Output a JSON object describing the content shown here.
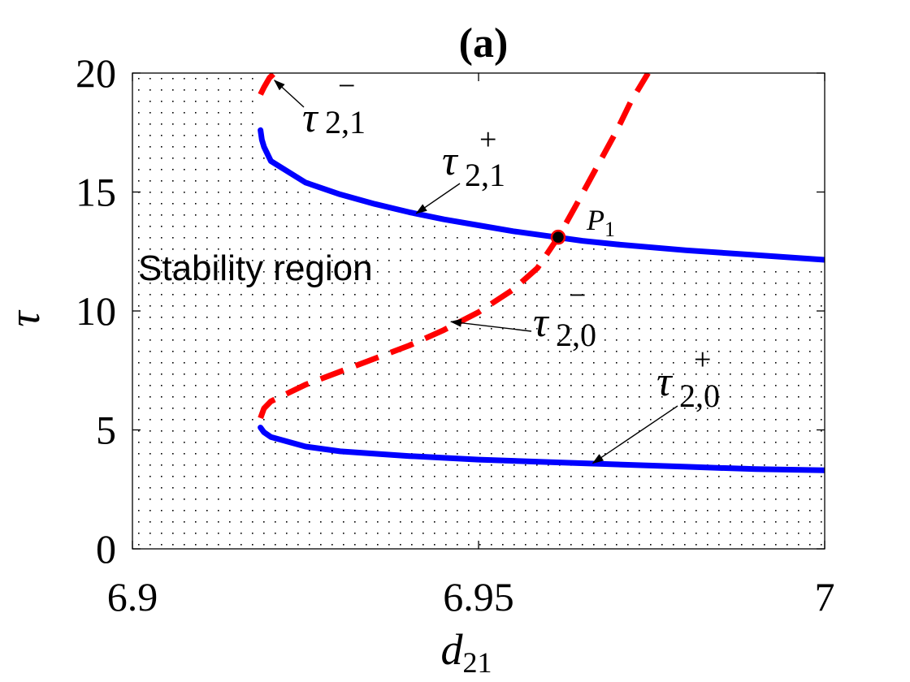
{
  "chart_data": {
    "type": "line",
    "title": "(a)",
    "xlabel": {
      "base": "d",
      "sub": "21"
    },
    "ylabel": "τ",
    "xlim": [
      6.9,
      7.0
    ],
    "ylim": [
      0,
      20
    ],
    "xticks": [
      6.9,
      6.95,
      7.0
    ],
    "xtick_labels": [
      "6.9",
      "6.95",
      "7"
    ],
    "yticks": [
      0,
      5,
      10,
      15,
      20
    ],
    "ytick_labels": [
      "0",
      "5",
      "10",
      "15",
      "20"
    ],
    "grid": false,
    "region": {
      "label": "Stability region",
      "pattern": "dotted",
      "boundary_x": 6.9185
    },
    "series": [
      {
        "key": "tau21plus",
        "style": "solid",
        "color": "#0000FF",
        "label": {
          "base": "τ",
          "sub": "2,1",
          "sup": "+"
        },
        "x": [
          6.9185,
          6.9187,
          6.919,
          6.92,
          6.925,
          6.93,
          6.935,
          6.94,
          6.945,
          6.95,
          6.955,
          6.96,
          6.965,
          6.97,
          6.98,
          6.99,
          7.0
        ],
        "y": [
          17.6,
          17.2,
          16.9,
          16.3,
          15.4,
          14.9,
          14.5,
          14.15,
          13.85,
          13.6,
          13.35,
          13.15,
          12.95,
          12.8,
          12.55,
          12.35,
          12.15
        ]
      },
      {
        "key": "tau20plus",
        "style": "solid",
        "color": "#0000FF",
        "label": {
          "base": "τ",
          "sub": "2,0",
          "sup": "+"
        },
        "x": [
          6.9185,
          6.919,
          6.92,
          6.925,
          6.93,
          6.94,
          6.95,
          6.96,
          6.97,
          6.98,
          6.99,
          7.0
        ],
        "y": [
          5.1,
          4.9,
          4.7,
          4.3,
          4.1,
          3.9,
          3.75,
          3.65,
          3.55,
          3.45,
          3.35,
          3.3
        ]
      },
      {
        "key": "tau20minus",
        "style": "dashed",
        "color": "#FF0000",
        "label": {
          "base": "τ",
          "sub": "2,0",
          "sup": "−"
        },
        "x": [
          6.9185,
          6.919,
          6.92,
          6.925,
          6.93,
          6.935,
          6.94,
          6.945,
          6.95,
          6.955,
          6.9585,
          6.9615,
          6.964,
          6.967,
          6.97,
          6.972,
          6.9745
        ],
        "y": [
          5.5,
          5.9,
          6.2,
          6.9,
          7.45,
          8.0,
          8.55,
          9.2,
          9.95,
          10.9,
          11.8,
          13.1,
          14.4,
          16.0,
          17.6,
          18.8,
          20.0
        ]
      },
      {
        "key": "tau21minus",
        "style": "dashed",
        "color": "#FF0000",
        "label": {
          "base": "τ",
          "sub": "2,1",
          "sup": "−"
        },
        "x": [
          6.9185,
          6.919,
          6.9198,
          6.9205
        ],
        "y": [
          19.1,
          19.4,
          19.8,
          20.0
        ]
      }
    ],
    "point": {
      "label": {
        "base": "P",
        "sub": "1"
      },
      "x": 6.9615,
      "y": 13.1,
      "fill": "#000000",
      "stroke": "#FF0000"
    },
    "annotations": [
      {
        "series": "tau21minus",
        "tip": [
          6.9205,
          19.7
        ]
      },
      {
        "series": "tau21plus",
        "tip": [
          6.941,
          14.1
        ]
      },
      {
        "series": "tau20minus",
        "tip": [
          6.946,
          9.55
        ]
      },
      {
        "series": "tau20plus",
        "tip": [
          6.9665,
          3.6
        ]
      }
    ]
  }
}
